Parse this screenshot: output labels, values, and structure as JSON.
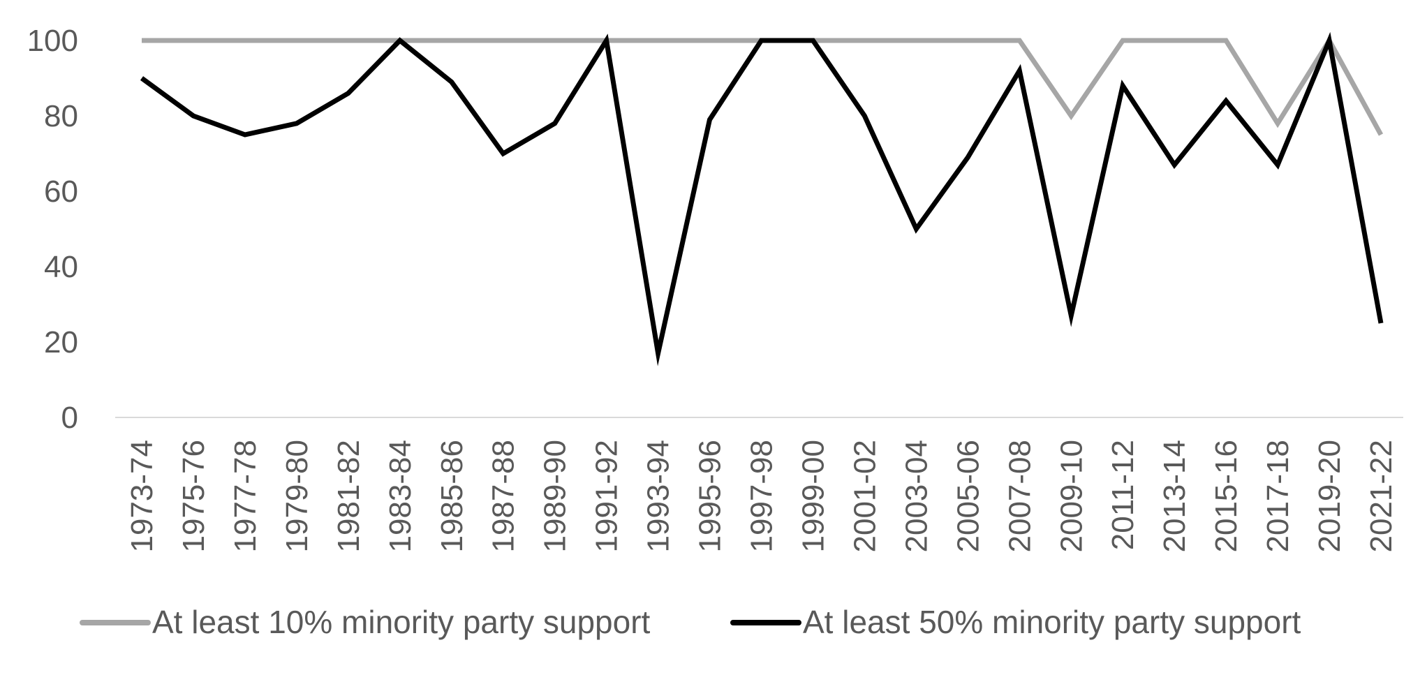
{
  "chart_data": {
    "type": "line",
    "title": "",
    "xlabel": "",
    "ylabel": "",
    "ylim": [
      0,
      100
    ],
    "yticks": [
      "0",
      "20",
      "40",
      "60",
      "80",
      "100"
    ],
    "grid": false,
    "legend_position": "bottom",
    "categories": [
      "1973-74",
      "1975-76",
      "1977-78",
      "1979-80",
      "1981-82",
      "1983-84",
      "1985-86",
      "1987-88",
      "1989-90",
      "1991-92",
      "1993-94",
      "1995-96",
      "1997-98",
      "1999-00",
      "2001-02",
      "2003-04",
      "2005-06",
      "2007-08",
      "2009-10",
      "2011-12",
      "2013-14",
      "2015-16",
      "2017-18",
      "2019-20",
      "2021-22"
    ],
    "series": [
      {
        "name": "At least 10% minority party support",
        "color": "#a6a6a6",
        "values": [
          100,
          100,
          100,
          100,
          100,
          100,
          100,
          100,
          100,
          100,
          100,
          100,
          100,
          100,
          100,
          100,
          100,
          100,
          80,
          100,
          100,
          100,
          78,
          100,
          75
        ]
      },
      {
        "name": "At least 50% minority party support",
        "color": "#000000",
        "values": [
          90,
          80,
          75,
          78,
          86,
          100,
          89,
          70,
          78,
          100,
          17,
          79,
          100,
          100,
          80,
          50,
          69,
          92,
          27,
          88,
          67,
          84,
          67,
          100,
          25
        ]
      }
    ]
  }
}
